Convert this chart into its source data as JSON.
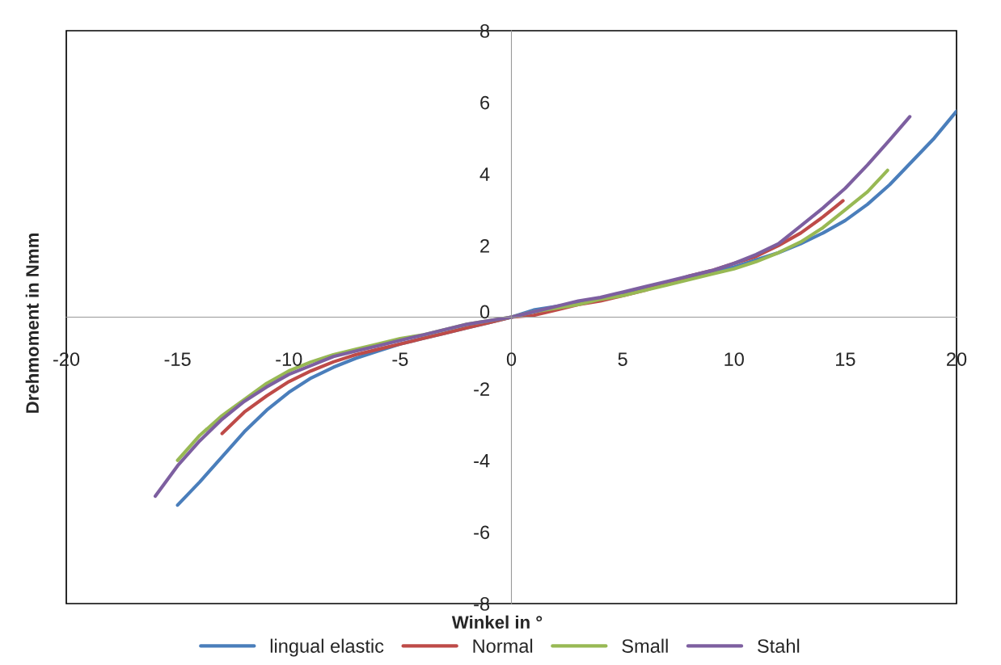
{
  "chart_data": {
    "type": "line",
    "xlabel": "Winkel in °",
    "ylabel": "Drehmoment in Nmm",
    "xlim": [
      -20,
      20
    ],
    "xticks": [
      -20,
      -15,
      -10,
      -5,
      0,
      5,
      10,
      15,
      20
    ],
    "ylim": [
      -8,
      8
    ],
    "yticks": [
      -8,
      -6,
      -4,
      -2,
      0,
      2,
      4,
      6,
      8
    ],
    "grid": false,
    "legend": "bottom",
    "marker": "none",
    "line_style": "solid",
    "series": [
      {
        "name": "lingual elastic",
        "color": "#4a7ebb",
        "x": [
          -15,
          -14,
          -13,
          -12,
          -11,
          -10,
          -9,
          -8,
          -7,
          -6,
          -5,
          -4,
          -3,
          -2,
          -1,
          0,
          1,
          2,
          3,
          4,
          5,
          6,
          7,
          8,
          9,
          10,
          11,
          12,
          13,
          14,
          15,
          16,
          17,
          18,
          19,
          20
        ],
        "values": [
          -5.25,
          -4.6,
          -3.9,
          -3.2,
          -2.6,
          -2.1,
          -1.7,
          -1.4,
          -1.15,
          -0.95,
          -0.75,
          -0.6,
          -0.45,
          -0.3,
          -0.15,
          0,
          0.2,
          0.3,
          0.4,
          0.5,
          0.65,
          0.8,
          0.95,
          1.1,
          1.25,
          1.4,
          1.6,
          1.8,
          2.05,
          2.35,
          2.7,
          3.15,
          3.7,
          4.35,
          5.0,
          5.75
        ]
      },
      {
        "name": "Normal",
        "color": "#be4b48",
        "x": [
          -13,
          -12,
          -11,
          -10,
          -9,
          -8,
          -7,
          -6,
          -5,
          -4,
          -3,
          -2,
          -1,
          0,
          1,
          2,
          3,
          4,
          5,
          6,
          7,
          8,
          9,
          10,
          11,
          12,
          13,
          14,
          14.9
        ],
        "values": [
          -3.25,
          -2.65,
          -2.2,
          -1.8,
          -1.5,
          -1.25,
          -1.05,
          -0.9,
          -0.75,
          -0.6,
          -0.45,
          -0.3,
          -0.15,
          0,
          0.05,
          0.2,
          0.35,
          0.45,
          0.6,
          0.75,
          0.95,
          1.15,
          1.3,
          1.5,
          1.7,
          2.0,
          2.35,
          2.8,
          3.25
        ]
      },
      {
        "name": "Small",
        "color": "#98b954",
        "x": [
          -15,
          -14,
          -13,
          -12,
          -11,
          -10,
          -9,
          -8,
          -7,
          -6,
          -5,
          -4,
          -3,
          -2,
          -1,
          0,
          1,
          2,
          3,
          4,
          5,
          6,
          7,
          8,
          9,
          10,
          11,
          12,
          13,
          14,
          15,
          16,
          16.9
        ],
        "values": [
          -4.0,
          -3.3,
          -2.75,
          -2.3,
          -1.85,
          -1.5,
          -1.25,
          -1.05,
          -0.9,
          -0.75,
          -0.6,
          -0.5,
          -0.35,
          -0.2,
          -0.1,
          0,
          0.15,
          0.25,
          0.35,
          0.5,
          0.6,
          0.75,
          0.9,
          1.05,
          1.2,
          1.35,
          1.55,
          1.8,
          2.1,
          2.5,
          3.0,
          3.5,
          4.1
        ]
      },
      {
        "name": "Stahl",
        "color": "#7d5fa0",
        "x": [
          -16,
          -15,
          -14,
          -13,
          -12,
          -11,
          -10,
          -9,
          -8,
          -7,
          -6,
          -5,
          -4,
          -3,
          -2,
          -1,
          0,
          1,
          2,
          3,
          4,
          5,
          6,
          7,
          8,
          9,
          10,
          11,
          12,
          13,
          14,
          15,
          16,
          17,
          17.9
        ],
        "values": [
          -5.0,
          -4.15,
          -3.45,
          -2.85,
          -2.35,
          -1.95,
          -1.6,
          -1.35,
          -1.1,
          -0.95,
          -0.8,
          -0.65,
          -0.5,
          -0.35,
          -0.2,
          -0.1,
          0,
          0.15,
          0.3,
          0.45,
          0.55,
          0.7,
          0.85,
          1.0,
          1.15,
          1.3,
          1.5,
          1.75,
          2.05,
          2.55,
          3.05,
          3.6,
          4.25,
          4.95,
          5.6
        ]
      }
    ]
  }
}
